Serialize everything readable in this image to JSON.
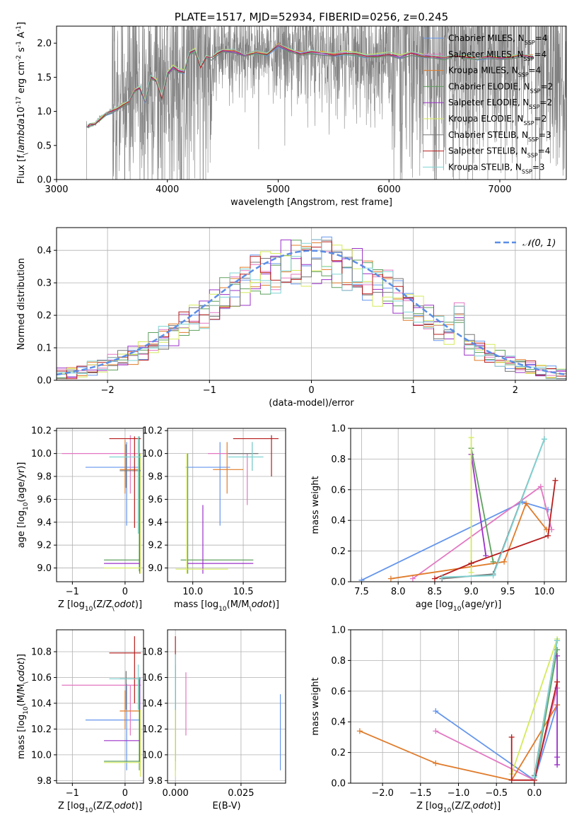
{
  "colors": [
    "#6495ed",
    "#e377c2",
    "#e07b2a",
    "#5fa05f",
    "#9b30c8",
    "#d4ea5a",
    "#777777",
    "#b71c1c",
    "#7fd3d3"
  ],
  "chart_data": [
    {
      "id": "spectrum",
      "type": "line",
      "title": "PLATE=1517, MJD=52934, FIBERID=0256, z=0.245",
      "xlabel": "wavelength [Angstrom, rest frame]",
      "ylabel": "Flux [f$_\\lambda$10$^{-17}$ erg cm$^{-2}$ s$^{-1}$ A$^{-1}$]",
      "xlim": [
        3000,
        7600
      ],
      "ylim": [
        0,
        2.25
      ],
      "xticks": [
        3000,
        4000,
        5000,
        6000,
        7000
      ],
      "yticks": [
        0.0,
        0.5,
        1.0,
        1.5,
        2.0
      ],
      "grid": false,
      "legend": {
        "placement": "top-right",
        "entries": [
          {
            "label": "Chabrier MILES, N",
            "sub": "SSP",
            "value": "=4"
          },
          {
            "label": "Salpeter MILES, N",
            "sub": "SSP",
            "value": "=4"
          },
          {
            "label": "Kroupa MILES, N",
            "sub": "SSP",
            "value": "=4"
          },
          {
            "label": "Chabrier ELODIE, N",
            "sub": "SSP",
            "value": "=2"
          },
          {
            "label": "Salpeter ELODIE, N",
            "sub": "SSP",
            "value": "=2"
          },
          {
            "label": "Kroupa ELODIE, N",
            "sub": "SSP",
            "value": "=2"
          },
          {
            "label": "Chabrier STELIB, N",
            "sub": "SSP",
            "value": "=3"
          },
          {
            "label": "Salpeter STELIB, N",
            "sub": "SSP",
            "value": "=4"
          },
          {
            "label": "Kroupa STELIB, N",
            "sub": "SSP",
            "value": "=3"
          }
        ]
      },
      "model_x": [
        3280,
        3300,
        3350,
        3400,
        3450,
        3500,
        3550,
        3600,
        3650,
        3700,
        3750,
        3800,
        3850,
        3900,
        3950,
        4000,
        4050,
        4100,
        4150,
        4200,
        4250,
        4300,
        4350,
        4400,
        4450,
        4500,
        4600,
        4700,
        4800,
        4900,
        5000,
        5100,
        5200,
        5300,
        5400,
        5500,
        5600,
        5700,
        5800,
        5900,
        6000,
        6100,
        6200,
        6300,
        6400,
        6500,
        6600,
        6700,
        6800,
        6900,
        7000,
        7100,
        7200,
        7300
      ],
      "model_y": [
        0.78,
        0.8,
        0.82,
        0.9,
        0.97,
        1.0,
        1.05,
        1.1,
        1.13,
        1.3,
        1.35,
        1.15,
        1.5,
        1.45,
        1.2,
        1.55,
        1.65,
        1.6,
        1.58,
        1.85,
        1.9,
        1.65,
        1.8,
        1.78,
        1.85,
        1.9,
        1.88,
        1.82,
        1.87,
        1.84,
        1.97,
        1.9,
        1.85,
        1.87,
        1.85,
        1.83,
        1.86,
        1.84,
        1.8,
        1.82,
        1.84,
        1.8,
        1.85,
        1.82,
        1.8,
        1.78,
        1.82,
        1.8,
        1.78,
        1.8,
        1.79,
        1.8,
        1.82,
        1.8
      ]
    },
    {
      "id": "residuals",
      "type": "histogram",
      "xlabel": "(data-model)/error",
      "ylabel": "Normed distribution",
      "xlim": [
        -2.5,
        2.5
      ],
      "ylim": [
        0,
        0.47
      ],
      "xticks": [
        -2,
        -1,
        0,
        1,
        2
      ],
      "yticks": [
        0.0,
        0.1,
        0.2,
        0.3,
        0.4
      ],
      "grid": true,
      "legend": {
        "placement": "top-right",
        "entries": [
          {
            "label": "𝒩(0, 1)"
          }
        ]
      },
      "bin_width": 0.1,
      "bin_start": -2.5
    },
    {
      "id": "age_vs_Z",
      "type": "errorbar",
      "xlabel": "Z [log$_{10}$(Z/Z$_\\odot$)]",
      "ylabel": "age  [log$_{10}$(age/yr)]",
      "xlim": [
        -1.3,
        0.35
      ],
      "ylim": [
        8.88,
        10.22
      ],
      "xticks": [
        -1,
        0
      ],
      "xtick_labels": [
        "−1",
        "0"
      ],
      "yticks": [
        9.0,
        9.2,
        9.4,
        9.6,
        9.8,
        10.0,
        10.2
      ],
      "grid": true,
      "points": [
        {
          "c": 0,
          "x": 0.03,
          "y": 9.88,
          "xl": -0.75,
          "xh": 0.3,
          "yl": 9.37,
          "yh": 10.1
        },
        {
          "c": 1,
          "x": 0.1,
          "y": 10.0,
          "xl": -1.2,
          "xh": 0.3,
          "yl": 9.65,
          "yh": 10.16
        },
        {
          "c": 2,
          "x": 0.0,
          "y": 9.86,
          "xl": -0.1,
          "xh": 0.3,
          "yl": 9.65,
          "yh": 10.12
        },
        {
          "c": 3,
          "x": 0.27,
          "y": 9.07,
          "xl": -0.4,
          "xh": 0.3,
          "yl": 8.97,
          "yh": 10.15
        },
        {
          "c": 4,
          "x": 0.28,
          "y": 9.04,
          "xl": -0.4,
          "xh": 0.3,
          "yl": 8.95,
          "yh": 10.0
        },
        {
          "c": 5,
          "x": 0.29,
          "y": 9.0,
          "xl": -0.4,
          "xh": 0.3,
          "yl": 8.95,
          "yh": 10.0
        },
        {
          "c": 6,
          "x": 0.02,
          "y": 9.85,
          "xl": -0.1,
          "xh": 0.3,
          "yl": 9.7,
          "yh": 10.08
        },
        {
          "c": 7,
          "x": 0.18,
          "y": 10.13,
          "xl": -0.3,
          "xh": 0.3,
          "yl": 9.35,
          "yh": 10.15
        },
        {
          "c": 8,
          "x": 0.25,
          "y": 9.97,
          "xl": -0.3,
          "xh": 0.3,
          "yl": 9.3,
          "yh": 10.15
        }
      ]
    },
    {
      "id": "age_vs_mass",
      "type": "errorbar",
      "xlabel": "mass [log$_{10}$(M/M$_\\odot$)]",
      "ylabel": "",
      "xlim": [
        9.75,
        10.92
      ],
      "ylim": [
        8.88,
        10.22
      ],
      "xticks": [
        10.0,
        10.5
      ],
      "yticks": [
        9.0,
        9.2,
        9.4,
        9.6,
        9.8,
        10.0,
        10.2
      ],
      "grid": true,
      "points": [
        {
          "c": 0,
          "x": 10.27,
          "y": 9.88,
          "xl": 9.93,
          "xh": 10.37,
          "yl": 9.37,
          "yh": 10.1
        },
        {
          "c": 1,
          "x": 10.54,
          "y": 10.0,
          "xl": 10.15,
          "xh": 10.54,
          "yl": 9.55,
          "yh": 10.0
        },
        {
          "c": 2,
          "x": 10.34,
          "y": 9.86,
          "xl": 10.2,
          "xh": 10.5,
          "yl": 9.65,
          "yh": 10.1
        },
        {
          "c": 3,
          "x": 9.95,
          "y": 9.07,
          "xl": 9.88,
          "xh": 10.6,
          "yl": 8.95,
          "yh": 10.0
        },
        {
          "c": 4,
          "x": 10.1,
          "y": 9.04,
          "xl": 9.95,
          "xh": 10.6,
          "yl": 8.95,
          "yh": 9.55
        },
        {
          "c": 5,
          "x": 9.94,
          "y": 8.99,
          "xl": 9.83,
          "xh": 10.35,
          "yl": 8.95,
          "yh": 10.0
        },
        {
          "c": 6,
          "x": 10.59,
          "y": 10.0,
          "xl": 10.35,
          "xh": 10.65,
          "yl": 9.85,
          "yh": 10.1
        },
        {
          "c": 7,
          "x": 10.78,
          "y": 10.13,
          "xl": 10.4,
          "xh": 10.85,
          "yl": 9.8,
          "yh": 10.16
        },
        {
          "c": 8,
          "x": 10.59,
          "y": 9.97,
          "xl": 10.35,
          "xh": 10.7,
          "yl": 9.85,
          "yh": 10.1
        }
      ]
    },
    {
      "id": "mw_vs_age",
      "type": "line",
      "xlabel": "age  [log$_{10}$(age/yr)]",
      "ylabel": "mass weight",
      "xlim": [
        7.35,
        10.3
      ],
      "ylim": [
        0,
        1.0
      ],
      "xticks": [
        7.5,
        8.0,
        8.5,
        9.0,
        9.5,
        10.0
      ],
      "yticks": [
        0.0,
        0.2,
        0.4,
        0.6,
        0.8,
        1.0
      ],
      "grid": true,
      "series": [
        {
          "c": 0,
          "x": [
            7.5,
            9.7,
            10.05
          ],
          "y": [
            0.01,
            0.52,
            0.47
          ]
        },
        {
          "c": 1,
          "x": [
            8.2,
            9.95,
            10.1
          ],
          "y": [
            0.02,
            0.62,
            0.34
          ]
        },
        {
          "c": 2,
          "x": [
            7.9,
            9.45,
            9.75,
            10.03
          ],
          "y": [
            0.02,
            0.13,
            0.51,
            0.34
          ]
        },
        {
          "c": 3,
          "x": [
            9.0,
            9.3
          ],
          "y": [
            0.87,
            0.13
          ]
        },
        {
          "c": 4,
          "x": [
            9.0,
            9.2
          ],
          "y": [
            0.83,
            0.17
          ]
        },
        {
          "c": 5,
          "x": [
            9.0,
            9.0
          ],
          "y": [
            0.94,
            0.06
          ]
        },
        {
          "c": 6,
          "x": [
            8.6,
            9.3,
            10.0
          ],
          "y": [
            0.02,
            0.05,
            0.93
          ]
        },
        {
          "c": 7,
          "x": [
            8.5,
            9.0,
            10.05,
            10.15
          ],
          "y": [
            0.02,
            0.12,
            0.3,
            0.66
          ]
        },
        {
          "c": 8,
          "x": [
            8.6,
            9.3,
            10.0
          ],
          "y": [
            0.03,
            0.04,
            0.93
          ]
        }
      ]
    },
    {
      "id": "mass_vs_Z",
      "type": "errorbar",
      "xlabel": "Z [log$_{10}$(Z/Z$_\\odot$)]",
      "ylabel": "mass [log$_{10}$(M/M$_\\odot$)]",
      "xlim": [
        -1.3,
        0.35
      ],
      "ylim": [
        9.78,
        10.97
      ],
      "xticks": [
        -1,
        0
      ],
      "xtick_labels": [
        "−1",
        "0"
      ],
      "yticks": [
        9.8,
        10.0,
        10.2,
        10.4,
        10.6,
        10.8
      ],
      "grid": true,
      "points": [
        {
          "c": 0,
          "x": 0.03,
          "y": 10.27,
          "xl": -0.75,
          "xh": 0.3,
          "yl": 9.88,
          "yh": 10.55
        },
        {
          "c": 1,
          "x": 0.1,
          "y": 10.54,
          "xl": -1.2,
          "xh": 0.3,
          "yl": 10.15,
          "yh": 10.54
        },
        {
          "c": 2,
          "x": 0.0,
          "y": 10.34,
          "xl": -0.1,
          "xh": 0.3,
          "yl": 10.2,
          "yh": 10.5
        },
        {
          "c": 3,
          "x": 0.27,
          "y": 9.95,
          "xl": -0.4,
          "xh": 0.3,
          "yl": 9.88,
          "yh": 10.6
        },
        {
          "c": 4,
          "x": 0.28,
          "y": 10.11,
          "xl": -0.4,
          "xh": 0.3,
          "yl": 9.95,
          "yh": 10.6
        },
        {
          "c": 5,
          "x": 0.29,
          "y": 9.94,
          "xl": -0.4,
          "xh": 0.3,
          "yl": 9.83,
          "yh": 10.35
        },
        {
          "c": 6,
          "x": 0.02,
          "y": 10.59,
          "xl": -0.1,
          "xh": 0.3,
          "yl": 10.35,
          "yh": 10.65
        },
        {
          "c": 7,
          "x": 0.18,
          "y": 10.79,
          "xl": -0.3,
          "xh": 0.3,
          "yl": 10.4,
          "yh": 10.92
        },
        {
          "c": 8,
          "x": 0.25,
          "y": 10.59,
          "xl": -0.3,
          "xh": 0.3,
          "yl": 10.35,
          "yh": 10.7
        }
      ]
    },
    {
      "id": "mass_vs_ebv",
      "type": "errorbar",
      "xlabel": "E(B-V)",
      "ylabel": "",
      "xlim": [
        -0.003,
        0.042
      ],
      "ylim": [
        9.78,
        10.97
      ],
      "xticks": [
        0.0,
        0.025
      ],
      "xtick_labels": [
        "0.000",
        "0.025"
      ],
      "yticks": [
        9.8,
        10.0,
        10.2,
        10.4,
        10.6,
        10.8
      ],
      "grid": true,
      "points": [
        {
          "c": 0,
          "x": 0.04,
          "y": 10.27,
          "xl": 0.04,
          "xh": 0.04,
          "yl": 9.88,
          "yh": 10.47
        },
        {
          "c": 1,
          "x": 0.004,
          "y": 10.54,
          "xl": 0.004,
          "xh": 0.004,
          "yl": 10.15,
          "yh": 10.64
        },
        {
          "c": 2,
          "x": 0.0,
          "y": 10.34,
          "xl": 0.0,
          "xh": 0.0,
          "yl": 10.2,
          "yh": 10.5
        },
        {
          "c": 3,
          "x": 0.0,
          "y": 9.95,
          "xl": 0.0,
          "xh": 0.0,
          "yl": 9.88,
          "yh": 10.6
        },
        {
          "c": 4,
          "x": 0.0,
          "y": 10.11,
          "xl": 0.0,
          "xh": 0.0,
          "yl": 9.95,
          "yh": 10.6
        },
        {
          "c": 5,
          "x": 0.0,
          "y": 9.94,
          "xl": 0.0,
          "xh": 0.0,
          "yl": 9.83,
          "yh": 10.35
        },
        {
          "c": 6,
          "x": 0.0,
          "y": 10.59,
          "xl": 0.0,
          "xh": 0.0,
          "yl": 10.35,
          "yh": 10.7
        },
        {
          "c": 7,
          "x": 0.0,
          "y": 10.79,
          "xl": 0.0,
          "xh": 0.0,
          "yl": 10.6,
          "yh": 10.92
        },
        {
          "c": 8,
          "x": 0.0,
          "y": 10.59,
          "xl": 0.0,
          "xh": 0.0,
          "yl": 10.35,
          "yh": 10.78
        }
      ]
    },
    {
      "id": "mw_vs_Z",
      "type": "line",
      "xlabel": "Z [log$_{10}$(Z/Z$_\\odot$)]",
      "ylabel": "mass weight",
      "xlim": [
        -2.42,
        0.42
      ],
      "ylim": [
        0,
        1.0
      ],
      "xticks": [
        -2.0,
        -1.5,
        -1.0,
        -0.5,
        0.0
      ],
      "xtick_labels": [
        "−2.0",
        "−1.5",
        "−1.0",
        "−0.5",
        "0.0"
      ],
      "yticks": [
        0.0,
        0.2,
        0.4,
        0.6,
        0.8,
        1.0
      ],
      "grid": true,
      "series": [
        {
          "c": 0,
          "x": [
            -1.3,
            0.0,
            0.3
          ],
          "y": [
            0.47,
            0.02,
            0.51
          ]
        },
        {
          "c": 1,
          "x": [
            -1.3,
            0.0,
            0.3
          ],
          "y": [
            0.34,
            0.02,
            0.62
          ]
        },
        {
          "c": 2,
          "x": [
            -2.3,
            -1.3,
            -0.3,
            0.3
          ],
          "y": [
            0.34,
            0.13,
            0.02,
            0.51
          ]
        },
        {
          "c": 3,
          "x": [
            0.0,
            0.3
          ],
          "y": [
            0.02,
            0.87
          ]
        },
        {
          "c": 4,
          "x": [
            0.3,
            0.3,
            0.3
          ],
          "y": [
            0.12,
            0.17,
            0.83
          ]
        },
        {
          "c": 5,
          "x": [
            -0.3,
            0.3
          ],
          "y": [
            0.06,
            0.94
          ]
        },
        {
          "c": 6,
          "x": [
            0.0,
            0.3
          ],
          "y": [
            0.05,
            0.93
          ]
        },
        {
          "c": 7,
          "x": [
            -0.3,
            -0.3,
            0.0,
            0.3
          ],
          "y": [
            0.3,
            0.02,
            0.02,
            0.66
          ]
        },
        {
          "c": 8,
          "x": [
            0.0,
            0.3
          ],
          "y": [
            0.04,
            0.93
          ]
        }
      ]
    }
  ]
}
